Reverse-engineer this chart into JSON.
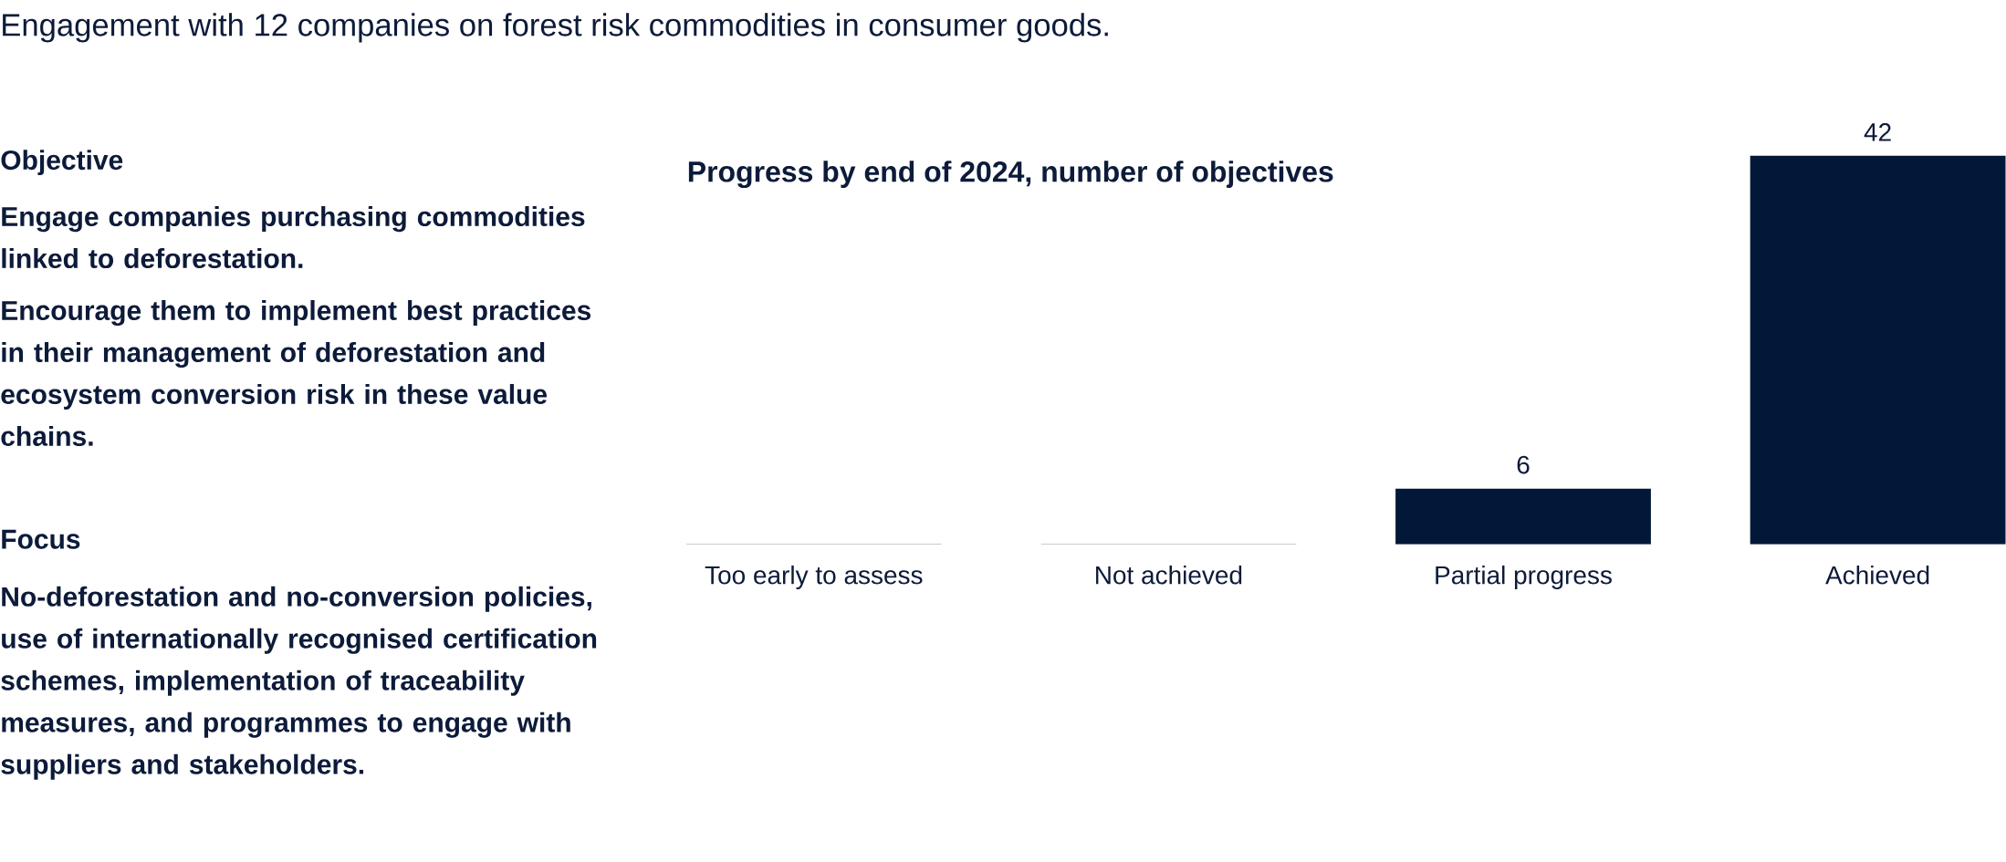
{
  "chart_data": {
    "type": "bar",
    "title": "Engagement with 12 companies on forest risk commodities in consumer goods.",
    "subtitle": "Progress by end of 2024, number of objectives",
    "categories": [
      "Too early to assess",
      "Not achieved",
      "Partial progress",
      "Achieved"
    ],
    "values": [
      0,
      0,
      6,
      42
    ],
    "value_labels": [
      null,
      null,
      "6",
      "42"
    ],
    "color": "#021839",
    "annotations": [
      "Objective",
      "Engage companies purchasing commodities linked to deforestation.",
      "Encourage them to implement best practices in their management of deforestation and ecosystem conversion risk in these value chains.",
      "Focus",
      "No-deforestation and no-conversion policies, use of internationally recognised certification schemes, implementation of traceability measures, and programmes to engage with suppliers and stakeholders."
    ]
  }
}
